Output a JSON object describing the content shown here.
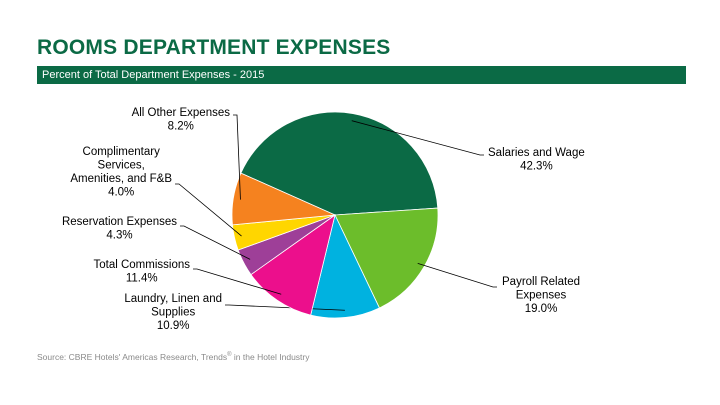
{
  "header": {
    "title": "ROOMS DEPARTMENT EXPENSES",
    "subtitle": "Percent of Total Department Expenses - 2015"
  },
  "footer": {
    "source_prefix": "Source: CBRE Hotels' Americas Research, Trends",
    "source_mark": "®",
    "source_suffix": " in the Hotel Industry"
  },
  "chart_data": {
    "type": "pie",
    "title": "",
    "slices": [
      {
        "lines": [
          "Salaries and Wage"
        ],
        "value": 42.3,
        "label": "42.3%",
        "color": "#0b6a45"
      },
      {
        "lines": [
          "Payroll Related",
          "Expenses"
        ],
        "value": 19.0,
        "label": "19.0%",
        "color": "#6cbd2b"
      },
      {
        "lines": [
          "Laundry, Linen and",
          "Supplies"
        ],
        "value": 10.9,
        "label": "10.9%",
        "color": "#00b2e0"
      },
      {
        "lines": [
          "Total Commissions"
        ],
        "value": 11.4,
        "label": "11.4%",
        "color": "#ec0f8c"
      },
      {
        "lines": [
          "Reservation Expenses"
        ],
        "value": 4.3,
        "label": "4.3%",
        "color": "#9e3f98"
      },
      {
        "lines": [
          "Complimentary",
          "Services,",
          "Amenities, and F&B"
        ],
        "value": 4.0,
        "label": "4.0%",
        "color": "#ffd600"
      },
      {
        "lines": [
          "All Other Expenses"
        ],
        "value": 8.2,
        "label": "8.2%",
        "color": "#f5821f"
      }
    ]
  }
}
